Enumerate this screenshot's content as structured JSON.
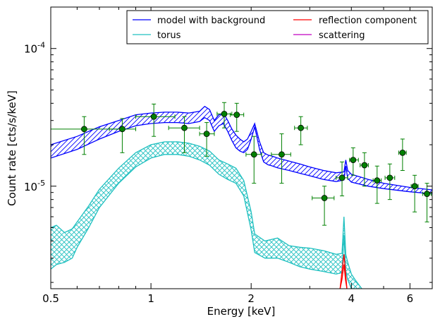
{
  "chart_data": {
    "type": "line",
    "xlabel": "Energy [keV]",
    "ylabel": "Count rate [cts/s/keV]",
    "xscale": "log",
    "yscale": "log",
    "xlim": [
      0.5,
      7.0
    ],
    "ylim": [
      1.8e-06,
      0.0002
    ],
    "x_ticks": [
      {
        "value": 0.5,
        "label": "0.5"
      },
      {
        "value": 1,
        "label": "1"
      },
      {
        "value": 2,
        "label": "2"
      },
      {
        "value": 4,
        "label": "4"
      },
      {
        "value": 6,
        "label": "6"
      }
    ],
    "y_ticks": [
      {
        "value": 1e-05,
        "base": "10",
        "exp": "-5"
      },
      {
        "value": 0.0001,
        "base": "10",
        "exp": "-4"
      }
    ],
    "legend": {
      "placement": "top-right",
      "entries": [
        {
          "label": "model with background",
          "color": "#0000ff"
        },
        {
          "label": "torus",
          "color": "#20c0c0"
        },
        {
          "label": "reflection component",
          "color": "#ff0000"
        },
        {
          "label": "scattering",
          "color": "#c000c0"
        }
      ]
    },
    "series": [
      {
        "name": "model with background",
        "color": "#0000ff",
        "style": "hatched-band",
        "x": [
          0.5,
          0.6,
          0.7,
          0.8,
          0.9,
          1.0,
          1.1,
          1.2,
          1.3,
          1.4,
          1.45,
          1.5,
          1.55,
          1.6,
          1.65,
          1.7,
          1.75,
          1.8,
          1.85,
          1.9,
          1.95,
          2.0,
          2.05,
          2.12,
          2.18,
          2.25,
          2.3,
          2.4,
          2.6,
          2.8,
          3.0,
          3.3,
          3.6,
          3.8,
          3.85,
          3.9,
          4.0,
          4.5,
          5.0,
          6.0,
          7.0
        ],
        "upper": [
          2e-05,
          2.3e-05,
          2.7e-05,
          3e-05,
          3.3e-05,
          3.4e-05,
          3.45e-05,
          3.45e-05,
          3.4e-05,
          3.5e-05,
          3.8e-05,
          3.6e-05,
          3e-05,
          3.3e-05,
          3.4e-05,
          3e-05,
          2.6e-05,
          2.35e-05,
          2.2e-05,
          2.1e-05,
          2.2e-05,
          2.5e-05,
          2.85e-05,
          2.1e-05,
          1.75e-05,
          1.68e-05,
          1.66e-05,
          1.6e-05,
          1.52e-05,
          1.45e-05,
          1.38e-05,
          1.3e-05,
          1.25e-05,
          1.27e-05,
          1.55e-05,
          1.3e-05,
          1.22e-05,
          1.12e-05,
          1.05e-05,
          9.8e-06,
          9.4e-06
        ],
        "lower": [
          1.6e-05,
          1.85e-05,
          2.2e-05,
          2.5e-05,
          2.75e-05,
          2.85e-05,
          2.9e-05,
          2.9e-05,
          2.85e-05,
          2.95e-05,
          3.15e-05,
          3e-05,
          2.5e-05,
          2.75e-05,
          2.85e-05,
          2.5e-05,
          2.15e-05,
          1.9e-05,
          1.8e-05,
          1.75e-05,
          1.85e-05,
          2.2e-05,
          2.7e-05,
          1.85e-05,
          1.5e-05,
          1.43e-05,
          1.41e-05,
          1.36e-05,
          1.3e-05,
          1.24e-05,
          1.19e-05,
          1.12e-05,
          1.08e-05,
          1.11e-05,
          1.4e-05,
          1.14e-05,
          1.07e-05,
          1e-05,
          9.6e-06,
          9.1e-06,
          8.8e-06
        ]
      },
      {
        "name": "torus",
        "color": "#20c0c0",
        "style": "crosshatched-band",
        "x": [
          0.5,
          0.52,
          0.55,
          0.58,
          0.6,
          0.65,
          0.7,
          0.8,
          0.9,
          1.0,
          1.1,
          1.2,
          1.3,
          1.4,
          1.5,
          1.6,
          1.7,
          1.8,
          1.9,
          2.0,
          2.05,
          2.2,
          2.4,
          2.6,
          2.8,
          3.0,
          3.3,
          3.6,
          3.75,
          3.8,
          3.85,
          3.9,
          4.0,
          4.1,
          4.3
        ],
        "upper": [
          5e-06,
          5.2e-06,
          4.6e-06,
          4.9e-06,
          5.5e-06,
          7.2e-06,
          9.5e-06,
          1.35e-05,
          1.75e-05,
          2e-05,
          2.1e-05,
          2.1e-05,
          2.05e-05,
          1.95e-05,
          1.8e-05,
          1.55e-05,
          1.45e-05,
          1.35e-05,
          1.1e-05,
          6.5e-06,
          4.5e-06,
          4e-06,
          4.2e-06,
          3.7e-06,
          3.6e-06,
          3.55e-06,
          3.4e-06,
          3.2e-06,
          3.25e-06,
          6e-06,
          3.2e-06,
          2.8e-06,
          2.3e-06,
          2.1e-06,
          1.8e-06
        ],
        "lower": [
          2.5e-06,
          2.7e-06,
          2.8e-06,
          3e-06,
          3.6e-06,
          5e-06,
          7e-06,
          1.05e-05,
          1.38e-05,
          1.6e-05,
          1.7e-05,
          1.7e-05,
          1.65e-05,
          1.55e-05,
          1.42e-05,
          1.22e-05,
          1.12e-05,
          1.05e-05,
          8.5e-06,
          4.8e-06,
          3.3e-06,
          3e-06,
          3e-06,
          2.8e-06,
          2.6e-06,
          2.5e-06,
          2.4e-06,
          2.3e-06,
          2.35e-06,
          4.4e-06,
          2.4e-06,
          2.1e-06,
          1.8e-06,
          1.8e-06,
          1.8e-06
        ]
      },
      {
        "name": "reflection component",
        "color": "#ff0000",
        "style": "band",
        "x": [
          3.7,
          3.75,
          3.8,
          3.84,
          3.88
        ],
        "upper": [
          1.8e-06,
          2.4e-06,
          3.2e-06,
          2.4e-06,
          1.8e-06
        ],
        "lower": [
          1.8e-06,
          2.1e-06,
          2.7e-06,
          2.1e-06,
          1.8e-06
        ]
      }
    ],
    "data_points": {
      "name": "data",
      "color": "#008000",
      "points": [
        {
          "x": 0.63,
          "y": 2.6e-05,
          "xerr": [
            0.5,
            0.82
          ],
          "yerr": [
            1.7e-05,
            3.2e-05
          ]
        },
        {
          "x": 0.82,
          "y": 2.6e-05,
          "xerr": [
            0.75,
            0.9
          ],
          "yerr": [
            1.75e-05,
            3.1e-05
          ]
        },
        {
          "x": 1.02,
          "y": 3.2e-05,
          "xerr": [
            0.9,
            1.18
          ],
          "yerr": [
            2.3e-05,
            3.95e-05
          ]
        },
        {
          "x": 1.26,
          "y": 2.65e-05,
          "xerr": [
            1.13,
            1.4
          ],
          "yerr": [
            1.75e-05,
            3.2e-05
          ]
        },
        {
          "x": 1.47,
          "y": 2.4e-05,
          "xerr": [
            1.4,
            1.55
          ],
          "yerr": [
            1.65e-05,
            2.9e-05
          ]
        },
        {
          "x": 1.66,
          "y": 3.35e-05,
          "xerr": [
            1.58,
            1.75
          ],
          "yerr": [
            2.65e-05,
            4.05e-05
          ]
        },
        {
          "x": 1.81,
          "y": 3.3e-05,
          "xerr": [
            1.73,
            1.9
          ],
          "yerr": [
            2.5e-05,
            4e-05
          ]
        },
        {
          "x": 2.04,
          "y": 1.7e-05,
          "xerr": [
            1.93,
            2.15
          ],
          "yerr": [
            1.05e-05,
            2.3e-05
          ]
        },
        {
          "x": 2.47,
          "y": 1.7e-05,
          "xerr": [
            2.3,
            2.63
          ],
          "yerr": [
            1.05e-05,
            2.4e-05
          ]
        },
        {
          "x": 2.82,
          "y": 2.65e-05,
          "xerr": [
            2.7,
            2.95
          ],
          "yerr": [
            2e-05,
            3.2e-05
          ]
        },
        {
          "x": 3.32,
          "y": 8.2e-06,
          "xerr": [
            3.05,
            3.55
          ],
          "yerr": [
            5.2e-06,
            1e-05
          ]
        },
        {
          "x": 3.75,
          "y": 1.15e-05,
          "xerr": [
            3.6,
            3.9
          ],
          "yerr": [
            8.5e-06,
            1.5e-05
          ]
        },
        {
          "x": 4.05,
          "y": 1.55e-05,
          "xerr": [
            3.95,
            4.2
          ],
          "yerr": [
            1.2e-05,
            1.9e-05
          ]
        },
        {
          "x": 4.38,
          "y": 1.42e-05,
          "xerr": [
            4.25,
            4.5
          ],
          "yerr": [
            1e-05,
            1.75e-05
          ]
        },
        {
          "x": 4.78,
          "y": 1.1e-05,
          "xerr": [
            4.65,
            4.92
          ],
          "yerr": [
            7.5e-06,
            1.4e-05
          ]
        },
        {
          "x": 5.22,
          "y": 1.15e-05,
          "xerr": [
            5.05,
            5.4
          ],
          "yerr": [
            8e-06,
            1.45e-05
          ]
        },
        {
          "x": 5.7,
          "y": 1.75e-05,
          "xerr": [
            5.55,
            5.85
          ],
          "yerr": [
            1.3e-05,
            2.2e-05
          ]
        },
        {
          "x": 6.2,
          "y": 1e-05,
          "xerr": [
            6.05,
            6.35
          ],
          "yerr": [
            6.5e-06,
            1.2e-05
          ]
        },
        {
          "x": 6.75,
          "y": 8.8e-06,
          "xerr": [
            6.55,
            6.95
          ],
          "yerr": [
            5.5e-06,
            1.05e-05
          ]
        }
      ]
    }
  }
}
